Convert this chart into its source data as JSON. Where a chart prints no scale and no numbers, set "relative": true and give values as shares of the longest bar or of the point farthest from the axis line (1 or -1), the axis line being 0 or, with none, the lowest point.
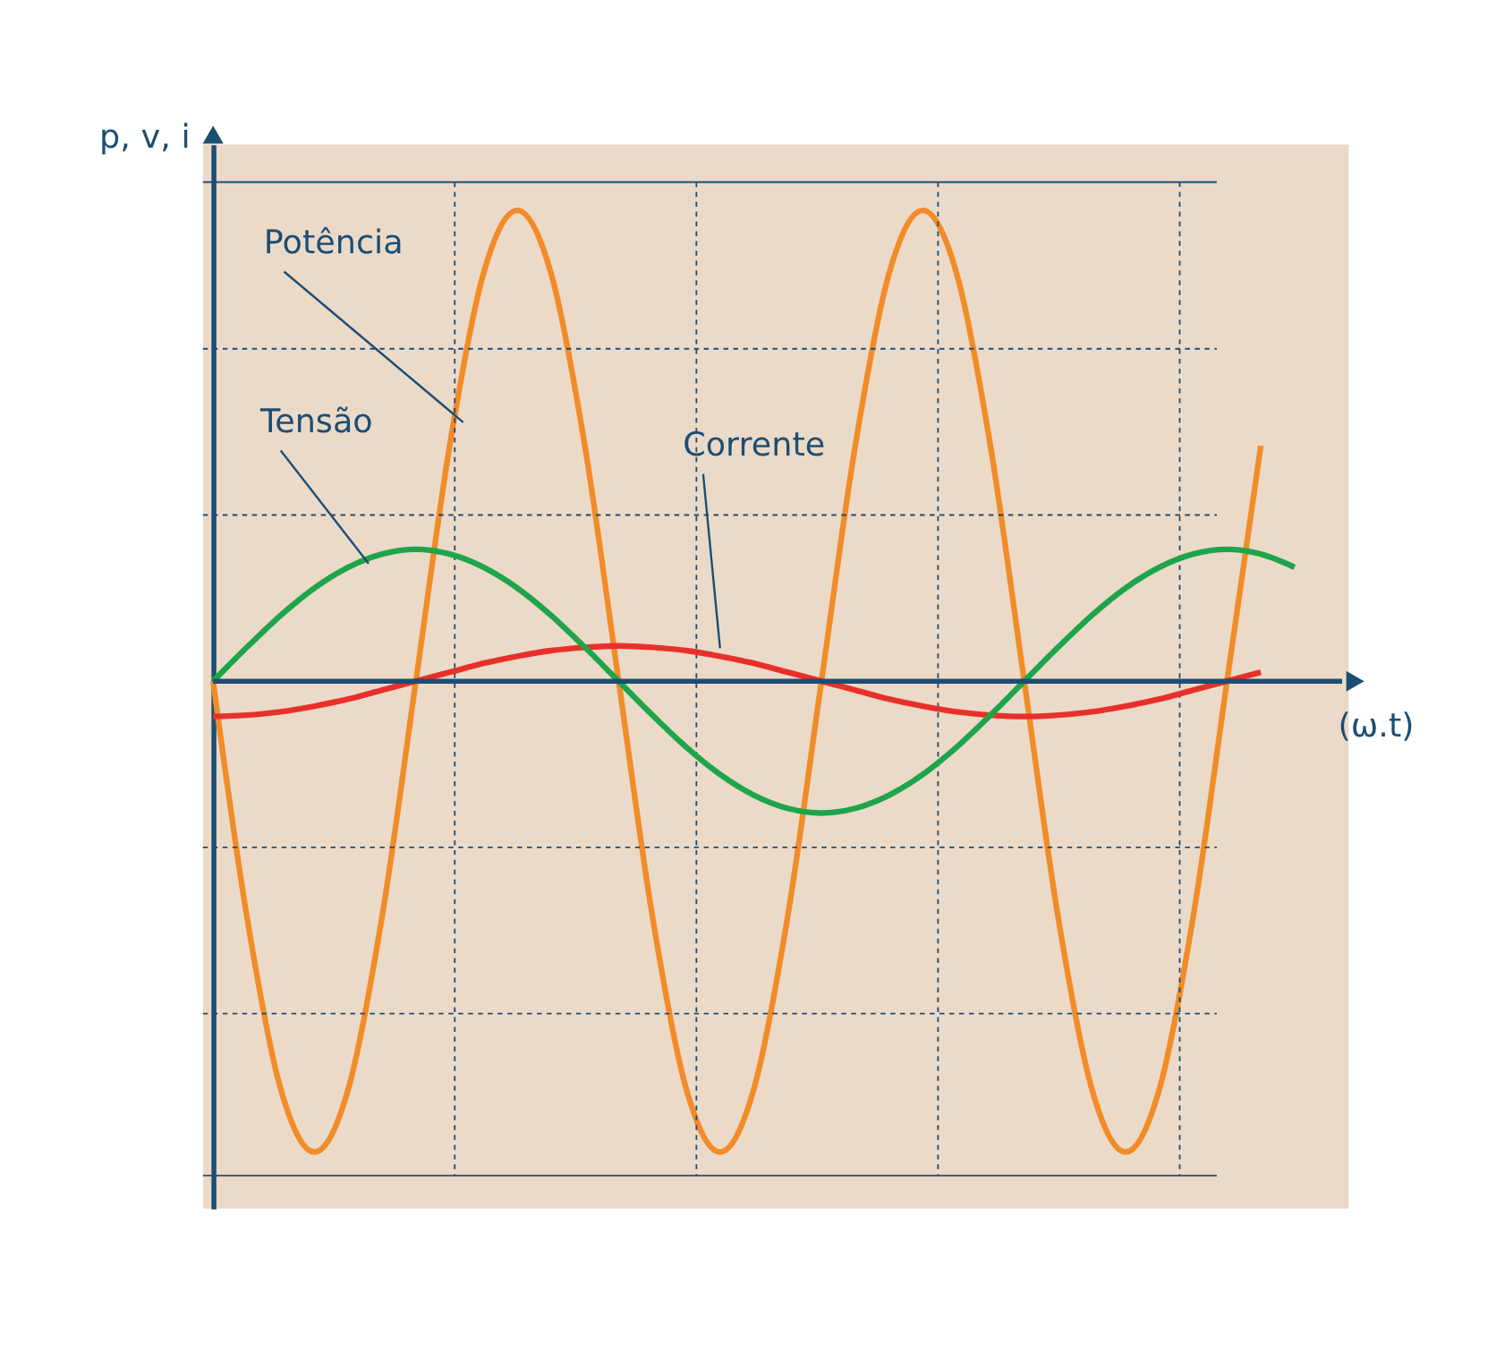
{
  "chart_data": {
    "type": "line",
    "relative": true,
    "xlabel": "(ω.t)",
    "ylabel": "p, v, i",
    "grid": true,
    "ref_lines": [
      {
        "axis": "y",
        "value": 0,
        "color": "#1c4e73"
      }
    ],
    "marker": "none",
    "line_style": "solid",
    "categories": [
      null,
      null,
      null,
      null,
      null,
      null,
      null,
      null,
      null,
      null,
      null,
      null,
      null,
      null,
      null,
      null,
      null,
      null,
      null,
      null,
      null,
      null,
      null,
      null,
      null,
      null,
      null,
      null,
      null,
      null,
      null,
      null,
      null
    ],
    "series": [
      {
        "name": "Potência",
        "color": "#f28c28",
        "values": [
          0,
          -0.5,
          -0.866,
          -1,
          -0.866,
          -0.5,
          0,
          0.5,
          0.866,
          1,
          0.866,
          0.5,
          0,
          -0.5,
          -0.866,
          -1,
          -0.866,
          -0.5,
          0,
          0.5,
          0.866,
          1,
          0.866,
          0.5,
          0,
          -0.5,
          -0.866,
          -1,
          -0.866,
          -0.5,
          0,
          0.5,
          null
        ]
      },
      {
        "name": "Tensão",
        "color": "#1ea54b",
        "values": [
          0,
          0.072,
          0.14,
          0.198,
          0.242,
          0.27,
          0.28,
          0.27,
          0.242,
          0.198,
          0.14,
          0.072,
          0,
          -0.072,
          -0.14,
          -0.198,
          -0.242,
          -0.27,
          -0.28,
          -0.27,
          -0.242,
          -0.198,
          -0.14,
          -0.072,
          0,
          0.072,
          0.14,
          0.198,
          0.242,
          0.27,
          0.28,
          0.27,
          0.242
        ]
      },
      {
        "name": "Corrente",
        "color": "#e8302a",
        "values": [
          -0.075,
          -0.072,
          -0.065,
          -0.053,
          -0.038,
          -0.019,
          0,
          0.019,
          0.038,
          0.053,
          0.065,
          0.072,
          0.075,
          0.072,
          0.065,
          0.053,
          0.038,
          0.019,
          0,
          -0.019,
          -0.038,
          -0.053,
          -0.065,
          -0.072,
          -0.075,
          -0.072,
          -0.065,
          -0.053,
          -0.038,
          -0.019,
          0,
          0.019,
          null
        ]
      }
    ]
  }
}
